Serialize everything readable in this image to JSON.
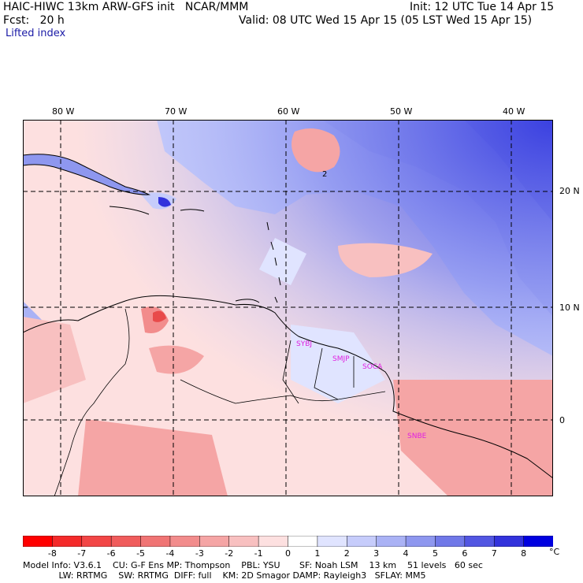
{
  "header": {
    "title": "HAIC-HIWC 13km ARW-GFS init   NCAR/MMM",
    "init": "Init: 12 UTC Tue 14 Apr 15",
    "fcst": "Fcst:   20 h",
    "valid": "Valid: 08 UTC Wed 15 Apr 15 (05 LST Wed 15 Apr 15)",
    "field": "Lifted index"
  },
  "map": {
    "lon_labels": [
      "80 W",
      "70 W",
      "60 W",
      "50 W",
      "40 W"
    ],
    "lat_labels": [
      "20 N",
      "10 N",
      "0"
    ],
    "stations": [
      "SYBJ",
      "SMJP",
      "SOCA",
      "SNBE"
    ],
    "contour_labels": [
      "2"
    ]
  },
  "colorbar": {
    "ticks": [
      "-8",
      "-7",
      "-6",
      "-5",
      "-4",
      "-3",
      "-2",
      "-1",
      "0",
      "1",
      "2",
      "3",
      "4",
      "5",
      "6",
      "7",
      "8"
    ],
    "unit": "°C",
    "colors": [
      "#ff0000",
      "#f42a2a",
      "#f24646",
      "#f05c5c",
      "#f07474",
      "#f28c8c",
      "#f5a5a5",
      "#f8c0c0",
      "#fde0e0",
      "#ffffff",
      "#e0e4ff",
      "#c6ccfb",
      "#aab2f5",
      "#8e97ef",
      "#7078e8",
      "#5256e2",
      "#3232dc",
      "#0000e0"
    ]
  },
  "footer": {
    "line1": "Model Info: V3.6.1    CU: G-F Ens MP: Thompson    PBL: YSU       SF: Noah LSM    13 km    51 levels   60 sec",
    "line2": "             LW: RRTMG    SW: RRTMG  DIFF: full    KM: 2D Smagor DAMP: Rayleigh3   SFLAY: MM5"
  }
}
